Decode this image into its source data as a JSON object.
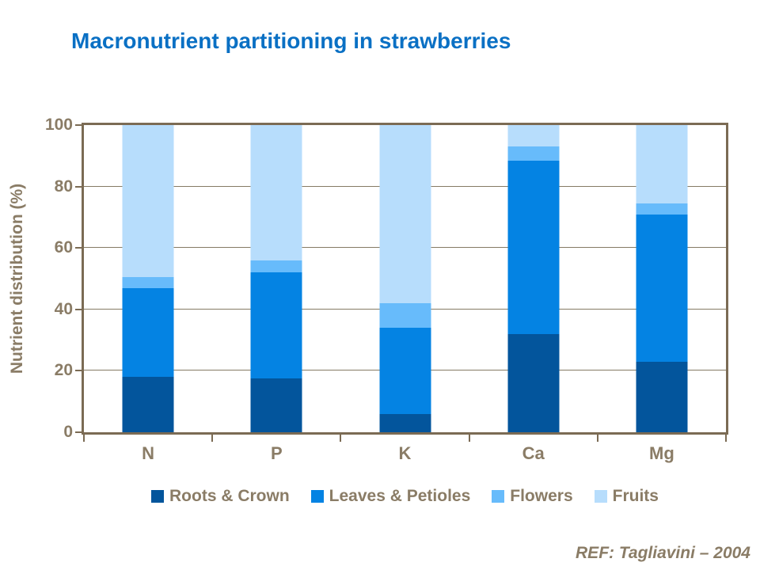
{
  "title": "Macronutrient partitioning in strawberries",
  "ref": "REF: Tagliavini – 2004",
  "colors": {
    "title": "#0a70c4",
    "axis_text": "#8a7c66",
    "frame": "#7b6b54",
    "gridline": "#857a64"
  },
  "chart_data": {
    "type": "bar",
    "stacked": true,
    "title": "Macronutrient partitioning in strawberries",
    "xlabel": "",
    "ylabel": "Nutrient distribution (%)",
    "ylim": [
      0,
      100
    ],
    "yticks": [
      0,
      20,
      40,
      60,
      80,
      100
    ],
    "grid": true,
    "legend_position": "bottom",
    "categories": [
      "N",
      "P",
      "K",
      "Ca",
      "Mg"
    ],
    "series": [
      {
        "name": "Roots & Crown",
        "color": "#03559c",
        "values": [
          18,
          17.5,
          6,
          32,
          23
        ]
      },
      {
        "name": "Leaves & Petioles",
        "color": "#0483e3",
        "values": [
          29,
          34.5,
          28,
          56.5,
          48
        ]
      },
      {
        "name": "Flowers",
        "color": "#67bbfb",
        "values": [
          3.5,
          4,
          8,
          4.5,
          3.5
        ]
      },
      {
        "name": "Fruits",
        "color": "#b7ddfc",
        "values": [
          49.5,
          44,
          58,
          7,
          25.5
        ]
      }
    ]
  }
}
